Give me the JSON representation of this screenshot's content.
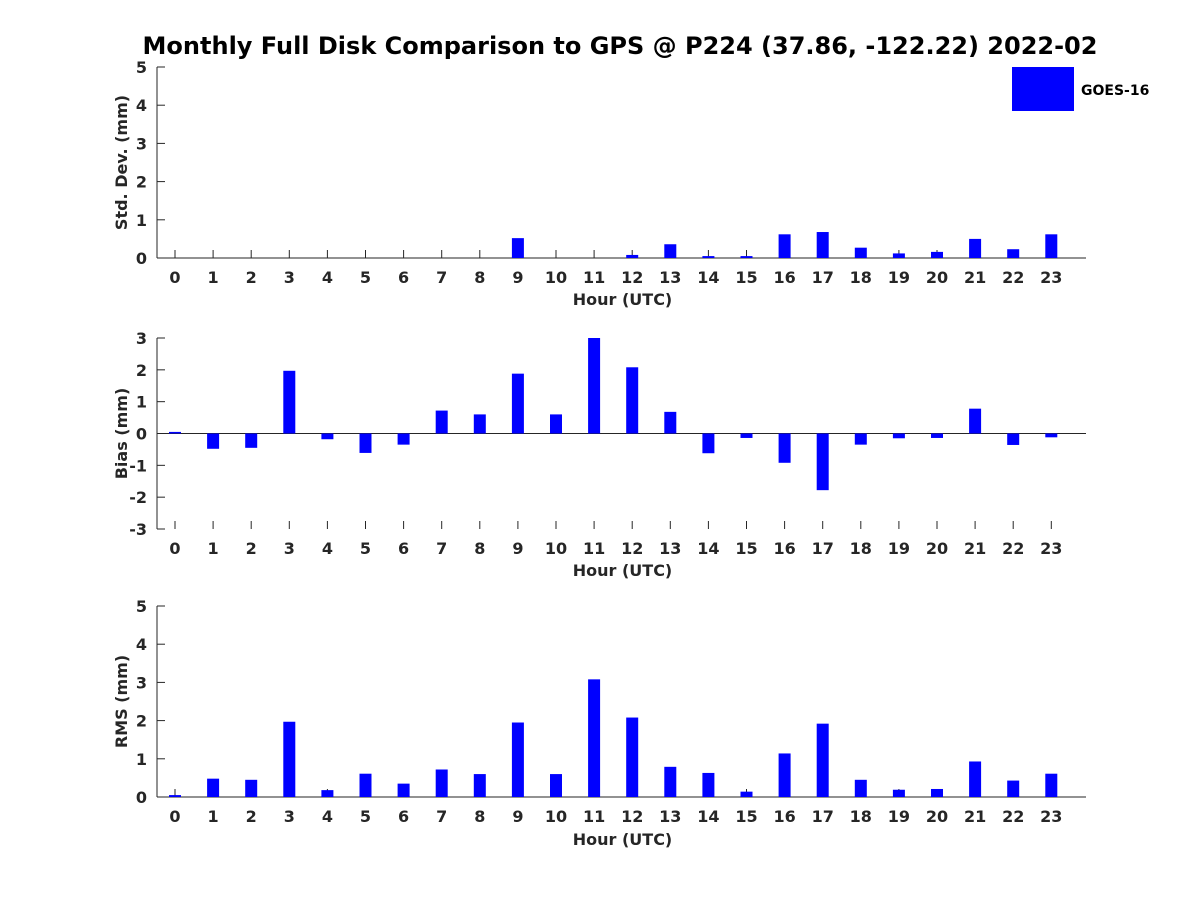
{
  "title": "Monthly Full Disk Comparison to GPS @ P224 (37.86, -122.22) 2022-02",
  "legend": {
    "label": "GOES-16",
    "color": "#0000ff"
  },
  "chart_data": [
    {
      "type": "bar",
      "xlabel": "Hour (UTC)",
      "ylabel": "Std. Dev. (mm)",
      "ylim": [
        0,
        5
      ],
      "yticks": [
        0,
        1,
        2,
        3,
        4,
        5
      ],
      "categories": [
        "0",
        "1",
        "2",
        "3",
        "4",
        "5",
        "6",
        "7",
        "8",
        "9",
        "10",
        "11",
        "12",
        "13",
        "14",
        "15",
        "16",
        "17",
        "18",
        "19",
        "20",
        "21",
        "22",
        "23"
      ],
      "series": [
        {
          "name": "GOES-16",
          "values": [
            0,
            0,
            0,
            0,
            0,
            0,
            0,
            0,
            0,
            0.52,
            0,
            0,
            0.08,
            0.36,
            0.05,
            0.05,
            0.62,
            0.68,
            0.27,
            0.12,
            0.16,
            0.5,
            0.23,
            0.62
          ]
        }
      ],
      "bar_color": "#0000ff",
      "grid": false
    },
    {
      "type": "bar",
      "xlabel": "Hour (UTC)",
      "ylabel": "Bias (mm)",
      "ylim": [
        -3,
        3
      ],
      "yticks": [
        -3,
        -2,
        -1,
        0,
        1,
        2,
        3
      ],
      "categories": [
        "0",
        "1",
        "2",
        "3",
        "4",
        "5",
        "6",
        "7",
        "8",
        "9",
        "10",
        "11",
        "12",
        "13",
        "14",
        "15",
        "16",
        "17",
        "18",
        "19",
        "20",
        "21",
        "22",
        "23"
      ],
      "series": [
        {
          "name": "GOES-16",
          "values": [
            0.05,
            -0.48,
            -0.45,
            1.97,
            -0.18,
            -0.61,
            -0.35,
            0.72,
            0.6,
            1.88,
            0.6,
            3.0,
            2.08,
            0.68,
            -0.62,
            -0.14,
            -0.92,
            -1.78,
            -0.35,
            -0.15,
            -0.14,
            0.78,
            -0.36,
            -0.12
          ]
        }
      ],
      "bar_color": "#0000ff",
      "grid": false
    },
    {
      "type": "bar",
      "xlabel": "Hour (UTC)",
      "ylabel": "RMS (mm)",
      "ylim": [
        0,
        5
      ],
      "yticks": [
        0,
        1,
        2,
        3,
        4,
        5
      ],
      "categories": [
        "0",
        "1",
        "2",
        "3",
        "4",
        "5",
        "6",
        "7",
        "8",
        "9",
        "10",
        "11",
        "12",
        "13",
        "14",
        "15",
        "16",
        "17",
        "18",
        "19",
        "20",
        "21",
        "22",
        "23"
      ],
      "series": [
        {
          "name": "GOES-16",
          "values": [
            0.05,
            0.48,
            0.45,
            1.97,
            0.18,
            0.61,
            0.35,
            0.72,
            0.6,
            1.95,
            0.6,
            3.08,
            2.08,
            0.79,
            0.63,
            0.14,
            1.14,
            1.92,
            0.45,
            0.19,
            0.21,
            0.93,
            0.43,
            0.61
          ]
        }
      ],
      "bar_color": "#0000ff",
      "grid": false
    }
  ]
}
